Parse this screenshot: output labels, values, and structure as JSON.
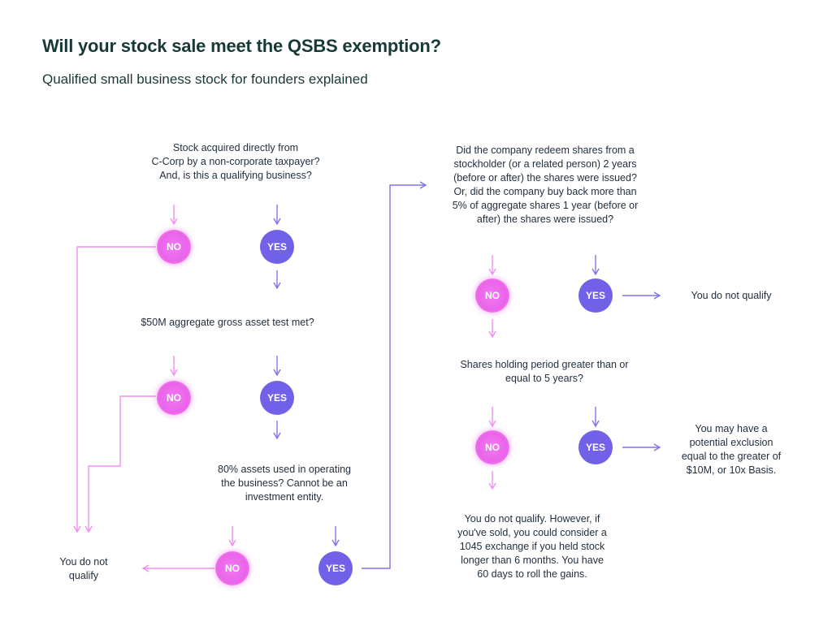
{
  "header": {
    "title": "Will your stock sale meet the QSBS exemption?",
    "subtitle": "Qualified small business stock for founders explained"
  },
  "questions": {
    "q1": [
      "Stock acquired directly from",
      "C-Corp by a non-corporate taxpayer?",
      "And, is this a qualifying business?"
    ],
    "q2": [
      "$50M aggregate gross asset test met?"
    ],
    "q3": [
      "80% assets used in operating",
      "the business? Cannot be an",
      "investment entity."
    ],
    "q4": [
      "Did the company redeem shares from a",
      "stockholder (or a related person) 2 years",
      "(before or after) the shares were issued?",
      "Or, did the company buy back more than",
      "5% of aggregate shares 1 year (before or",
      "after) the shares were issued?"
    ],
    "q5": [
      "Shares holding period greater than or",
      "equal to 5 years?"
    ]
  },
  "outcomes": {
    "left_fail": [
      "You do not",
      "qualify"
    ],
    "redeem_fail": [
      "You do not qualify"
    ],
    "success": [
      "You may have a",
      "potential exclusion",
      "equal to the greater of",
      "$10M, or 10x Basis."
    ],
    "holding_fail": [
      "You do not qualify. However, if",
      "you've sold, you could consider a",
      "1045 exchange if you held stock",
      "longer than 6 months. You have",
      "60 days to roll the gains."
    ]
  },
  "labels": {
    "no": "NO",
    "yes": "YES"
  },
  "colors": {
    "no": "#ea63ea",
    "yes": "#7061e8",
    "no_line": "#f28ef2",
    "yes_line": "#7f74ec",
    "title": "#173a36"
  }
}
